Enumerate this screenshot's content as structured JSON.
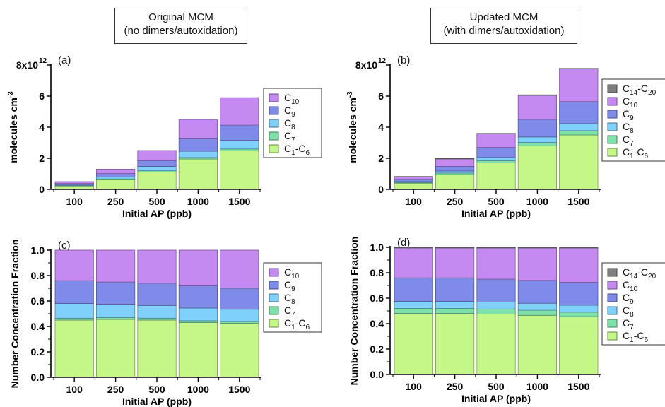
{
  "headers": [
    {
      "line1": "Original MCM",
      "line2": "(no dimers/autoxidation)"
    },
    {
      "line1": "Updated MCM",
      "line2": "(with dimers/autoxidation)"
    }
  ],
  "colors": {
    "C1-C6": "#c4f788",
    "C7": "#7ee2a8",
    "C8": "#7fd0fa",
    "C9": "#7f8be8",
    "C10": "#c48af2",
    "C14-C20": "#7f7f7f"
  },
  "chart_data": [
    {
      "type": "bar",
      "panel_label": "(a)",
      "stacked": true,
      "categories": [
        "100",
        "250",
        "500",
        "1000",
        "1500"
      ],
      "xlabel": "Initial AP (ppb)",
      "ylabel": "molecules cm-3",
      "ylabel_base": "molecules cm",
      "ylabel_sup": "-3",
      "ylim": [
        0,
        8000000000000.0
      ],
      "yticks": [
        0,
        2,
        4,
        6,
        8
      ],
      "ytick_labels": [
        "0",
        "2",
        "4",
        "6",
        "8x10"
      ],
      "ytick_top_sup": "12",
      "legend": [
        {
          "key": "C10",
          "base": "C",
          "sub": "10"
        },
        {
          "key": "C9",
          "base": "C",
          "sub": "9"
        },
        {
          "key": "C8",
          "base": "C",
          "sub": "8"
        },
        {
          "key": "C7",
          "base": "C",
          "sub": "7"
        },
        {
          "key": "C1-C6",
          "base": "C",
          "sub": "1",
          "mid": "-C",
          "sub2": "6"
        }
      ],
      "series": [
        {
          "name": "C1-C6",
          "values": [
            0.22,
            0.62,
            1.12,
            1.95,
            2.48
          ]
        },
        {
          "name": "C7",
          "values": [
            0.02,
            0.05,
            0.08,
            0.1,
            0.12
          ]
        },
        {
          "name": "C8",
          "values": [
            0.04,
            0.12,
            0.28,
            0.4,
            0.55
          ]
        },
        {
          "name": "C9",
          "values": [
            0.1,
            0.23,
            0.37,
            0.8,
            0.98
          ]
        },
        {
          "name": "C10",
          "values": [
            0.12,
            0.28,
            0.65,
            1.25,
            1.77
          ]
        }
      ]
    },
    {
      "type": "bar",
      "panel_label": "(b)",
      "stacked": true,
      "categories": [
        "100",
        "250",
        "500",
        "1000",
        "1500"
      ],
      "xlabel": "Initial AP (ppb)",
      "ylabel": "molecules cm-3",
      "ylabel_base": "molecules cm",
      "ylabel_sup": "-3",
      "ylim": [
        0,
        8000000000000.0
      ],
      "yticks": [
        0,
        2,
        4,
        6,
        8
      ],
      "ytick_labels": [
        "0",
        "2",
        "4",
        "6",
        "8x10"
      ],
      "ytick_top_sup": "12",
      "legend": [
        {
          "key": "C14-C20",
          "base": "C",
          "sub": "14",
          "mid": "-C",
          "sub2": "20"
        },
        {
          "key": "C10",
          "base": "C",
          "sub": "10"
        },
        {
          "key": "C9",
          "base": "C",
          "sub": "9"
        },
        {
          "key": "C8",
          "base": "C",
          "sub": "8"
        },
        {
          "key": "C7",
          "base": "C",
          "sub": "7"
        },
        {
          "key": "C1-C6",
          "base": "C",
          "sub": "1",
          "mid": "-C",
          "sub2": "6"
        }
      ],
      "series": [
        {
          "name": "C1-C6",
          "values": [
            0.4,
            0.95,
            1.7,
            2.8,
            3.5
          ]
        },
        {
          "name": "C7",
          "values": [
            0.04,
            0.1,
            0.15,
            0.22,
            0.28
          ]
        },
        {
          "name": "C8",
          "values": [
            0.06,
            0.13,
            0.2,
            0.35,
            0.45
          ]
        },
        {
          "name": "C9",
          "values": [
            0.14,
            0.3,
            0.65,
            1.13,
            1.42
          ]
        },
        {
          "name": "C10",
          "values": [
            0.18,
            0.48,
            0.88,
            1.55,
            2.1
          ]
        },
        {
          "name": "C14-C20",
          "values": [
            0.01,
            0.02,
            0.02,
            0.03,
            0.03
          ]
        }
      ]
    },
    {
      "type": "bar",
      "panel_label": "(c)",
      "stacked": true,
      "categories": [
        "100",
        "250",
        "500",
        "1000",
        "1500"
      ],
      "xlabel": "Initial AP (ppb)",
      "ylabel": "Number Concentration Fraction",
      "ylim": [
        0,
        1
      ],
      "yticks": [
        0,
        0.2,
        0.4,
        0.6,
        0.8,
        1.0
      ],
      "ytick_labels": [
        "0.0",
        "0.2",
        "0.4",
        "0.6",
        "0.8",
        "1.0"
      ],
      "legend": [
        {
          "key": "C10",
          "base": "C",
          "sub": "10"
        },
        {
          "key": "C9",
          "base": "C",
          "sub": "9"
        },
        {
          "key": "C8",
          "base": "C",
          "sub": "8"
        },
        {
          "key": "C7",
          "base": "C",
          "sub": "7"
        },
        {
          "key": "C1-C6",
          "base": "C",
          "sub": "1",
          "mid": "-C",
          "sub2": "6"
        }
      ],
      "series": [
        {
          "name": "C1-C6",
          "values": [
            0.45,
            0.455,
            0.45,
            0.43,
            0.425
          ]
        },
        {
          "name": "C7",
          "values": [
            0.015,
            0.015,
            0.015,
            0.015,
            0.015
          ]
        },
        {
          "name": "C8",
          "values": [
            0.115,
            0.105,
            0.1,
            0.1,
            0.095
          ]
        },
        {
          "name": "C9",
          "values": [
            0.18,
            0.175,
            0.175,
            0.175,
            0.165
          ]
        },
        {
          "name": "C10",
          "values": [
            0.24,
            0.25,
            0.26,
            0.28,
            0.3
          ]
        }
      ]
    },
    {
      "type": "bar",
      "panel_label": "(d)",
      "stacked": true,
      "categories": [
        "100",
        "250",
        "500",
        "1000",
        "1500"
      ],
      "xlabel": "Initial AP (ppb)",
      "ylabel": "Number Concentration Fraction",
      "ylim": [
        0,
        1
      ],
      "yticks": [
        0,
        0.2,
        0.4,
        0.6,
        0.8,
        1.0
      ],
      "ytick_labels": [
        "0.0",
        "0.2",
        "0.4",
        "0.6",
        "0.8",
        "1.0"
      ],
      "legend": [
        {
          "key": "C14-C20",
          "base": "C",
          "sub": "14",
          "mid": "-C",
          "sub2": "20"
        },
        {
          "key": "C10",
          "base": "C",
          "sub": "10"
        },
        {
          "key": "C9",
          "base": "C",
          "sub": "9"
        },
        {
          "key": "C8",
          "base": "C",
          "sub": "8"
        },
        {
          "key": "C7",
          "base": "C",
          "sub": "7"
        },
        {
          "key": "C1-C6",
          "base": "C",
          "sub": "1",
          "mid": "-C",
          "sub2": "6"
        }
      ],
      "series": [
        {
          "name": "C1-C6",
          "values": [
            0.48,
            0.48,
            0.475,
            0.465,
            0.455
          ]
        },
        {
          "name": "C7",
          "values": [
            0.04,
            0.04,
            0.04,
            0.04,
            0.035
          ]
        },
        {
          "name": "C8",
          "values": [
            0.055,
            0.055,
            0.055,
            0.055,
            0.055
          ]
        },
        {
          "name": "C9",
          "values": [
            0.185,
            0.185,
            0.18,
            0.18,
            0.18
          ]
        },
        {
          "name": "C10",
          "values": [
            0.235,
            0.235,
            0.245,
            0.255,
            0.27
          ]
        },
        {
          "name": "C14-C20",
          "values": [
            0.005,
            0.005,
            0.005,
            0.005,
            0.005
          ]
        }
      ]
    }
  ]
}
